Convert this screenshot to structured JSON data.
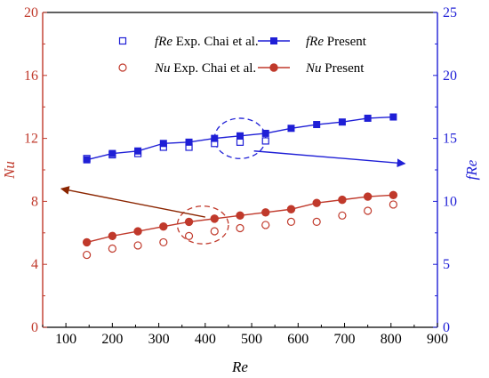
{
  "chart_data": {
    "type": "scatter",
    "x_axis": {
      "label": "Re",
      "lim": [
        50,
        900
      ],
      "ticks": [
        100,
        200,
        300,
        400,
        500,
        600,
        700,
        800,
        900
      ],
      "tick_labels": [
        "100",
        "200",
        "300",
        "400",
        "500",
        "600",
        "700",
        "800",
        "900"
      ]
    },
    "y_left": {
      "label": "Nu",
      "color": "#c0392b",
      "lim": [
        0,
        20
      ],
      "ticks": [
        0,
        4,
        8,
        12,
        16,
        20
      ],
      "tick_labels": [
        "0",
        "4",
        "8",
        "12",
        "16",
        "20"
      ]
    },
    "y_right": {
      "label": "fRe",
      "color": "#1f1fd6",
      "lim": [
        0,
        25
      ],
      "ticks": [
        0,
        5,
        10,
        15,
        20,
        25
      ],
      "tick_labels": [
        "0",
        "5",
        "10",
        "15",
        "20",
        "25"
      ]
    },
    "series": [
      {
        "legend_prefix": "fRe",
        "legend_suffix": " Exp. Chai et al.",
        "axis": "right",
        "color": "#1f1fd6",
        "marker": "square-open",
        "line": false,
        "x": [
          145,
          200,
          255,
          310,
          365,
          420,
          475,
          530
        ],
        "y": [
          13.4,
          13.7,
          13.8,
          14.3,
          14.3,
          14.6,
          14.7,
          14.8
        ]
      },
      {
        "legend_prefix": "fRe",
        "legend_suffix": " Present",
        "axis": "right",
        "color": "#1f1fd6",
        "marker": "square-filled",
        "line": true,
        "x": [
          145,
          200,
          255,
          310,
          365,
          420,
          475,
          530,
          585,
          640,
          695,
          750,
          805
        ],
        "y": [
          13.3,
          13.8,
          14.0,
          14.6,
          14.7,
          15.0,
          15.2,
          15.4,
          15.8,
          16.1,
          16.3,
          16.6,
          16.7
        ]
      },
      {
        "legend_prefix": "Nu",
        "legend_suffix": " Exp. Chai et al.",
        "axis": "left",
        "color": "#c0392b",
        "marker": "circle-open",
        "line": false,
        "x": [
          145,
          200,
          255,
          310,
          365,
          420,
          475,
          530,
          585,
          640,
          695,
          750,
          805
        ],
        "y": [
          4.6,
          5.0,
          5.2,
          5.4,
          5.8,
          6.1,
          6.3,
          6.5,
          6.7,
          6.7,
          7.1,
          7.4,
          7.8
        ]
      },
      {
        "legend_prefix": "Nu",
        "legend_suffix": " Present",
        "axis": "left",
        "color": "#c0392b",
        "marker": "circle-filled",
        "line": true,
        "x": [
          145,
          200,
          255,
          310,
          365,
          420,
          475,
          530,
          585,
          640,
          695,
          750,
          805
        ],
        "y": [
          5.4,
          5.8,
          6.1,
          6.4,
          6.7,
          6.9,
          7.1,
          7.3,
          7.5,
          7.9,
          8.1,
          8.3,
          8.4
        ]
      }
    ],
    "annotations": [
      {
        "type": "ellipse",
        "color": "#1f1fd6",
        "axis": "right",
        "cx": 475,
        "cy": 15.0,
        "rx": 55,
        "ry": 1.6
      },
      {
        "type": "ellipse",
        "color": "#c0392b",
        "axis": "left",
        "cx": 395,
        "cy": 6.5,
        "rx": 55,
        "ry": 1.2
      },
      {
        "type": "arrow",
        "color": "#1f1fd6",
        "axis": "right",
        "from": [
          505,
          14.0
        ],
        "to": [
          830,
          13.0
        ]
      },
      {
        "type": "arrow",
        "color": "#8b2500",
        "axis": "left",
        "from": [
          400,
          7.0
        ],
        "to": [
          90,
          8.8
        ]
      }
    ],
    "legend_position": "top"
  }
}
